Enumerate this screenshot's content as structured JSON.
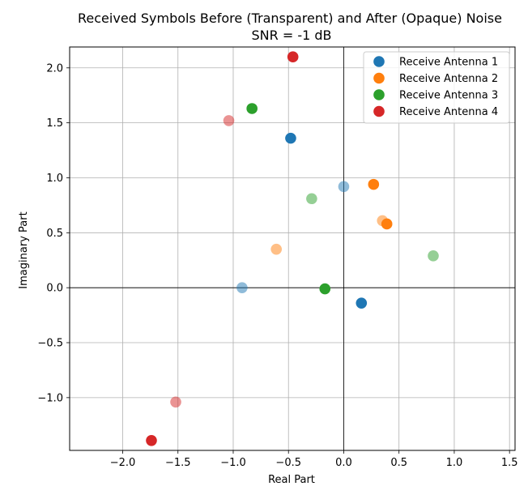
{
  "chart_data": {
    "type": "scatter",
    "title": "Received Symbols Before (Transparent) and After (Opaque) Noise",
    "subtitle": "SNR = -1 dB",
    "xlabel": "Real Part",
    "ylabel": "Imaginary Part",
    "xlim": [
      -2.48,
      1.55
    ],
    "ylim": [
      -1.48,
      2.19
    ],
    "xticks": [
      -2.0,
      -1.5,
      -1.0,
      -0.5,
      0.0,
      0.5,
      1.0,
      1.5
    ],
    "yticks": [
      -1.0,
      -0.5,
      0.0,
      0.5,
      1.0,
      1.5,
      2.0
    ],
    "xtick_labels": [
      "−2.0",
      "−1.5",
      "−1.0",
      "−0.5",
      "0.0",
      "0.5",
      "1.0",
      "1.5"
    ],
    "ytick_labels": [
      "−1.0",
      "−0.5",
      "0.0",
      "0.5",
      "1.0",
      "1.5",
      "2.0"
    ],
    "grid": true,
    "legend_position": "top-right",
    "series": [
      {
        "name": "Receive Antenna 1",
        "color": "#1f77b4",
        "before": [
          {
            "x": -0.92,
            "y": 0.0
          },
          {
            "x": 0.0,
            "y": 0.92
          }
        ],
        "after": [
          {
            "x": -0.48,
            "y": 1.36
          },
          {
            "x": 0.16,
            "y": -0.14
          }
        ]
      },
      {
        "name": "Receive Antenna 2",
        "color": "#ff7f0e",
        "before": [
          {
            "x": -0.61,
            "y": 0.35
          },
          {
            "x": 0.35,
            "y": 0.61
          }
        ],
        "after": [
          {
            "x": 0.27,
            "y": 0.94
          },
          {
            "x": 0.39,
            "y": 0.58
          }
        ]
      },
      {
        "name": "Receive Antenna 3",
        "color": "#2ca02c",
        "before": [
          {
            "x": -0.29,
            "y": 0.81
          },
          {
            "x": 0.81,
            "y": 0.29
          }
        ],
        "after": [
          {
            "x": -0.83,
            "y": 1.63
          },
          {
            "x": -0.17,
            "y": -0.01
          }
        ]
      },
      {
        "name": "Receive Antenna 4",
        "color": "#d62728",
        "before": [
          {
            "x": -1.04,
            "y": 1.52
          },
          {
            "x": -1.52,
            "y": -1.04
          }
        ],
        "after": [
          {
            "x": -0.46,
            "y": 2.1
          },
          {
            "x": -1.74,
            "y": -1.39
          }
        ]
      }
    ]
  }
}
